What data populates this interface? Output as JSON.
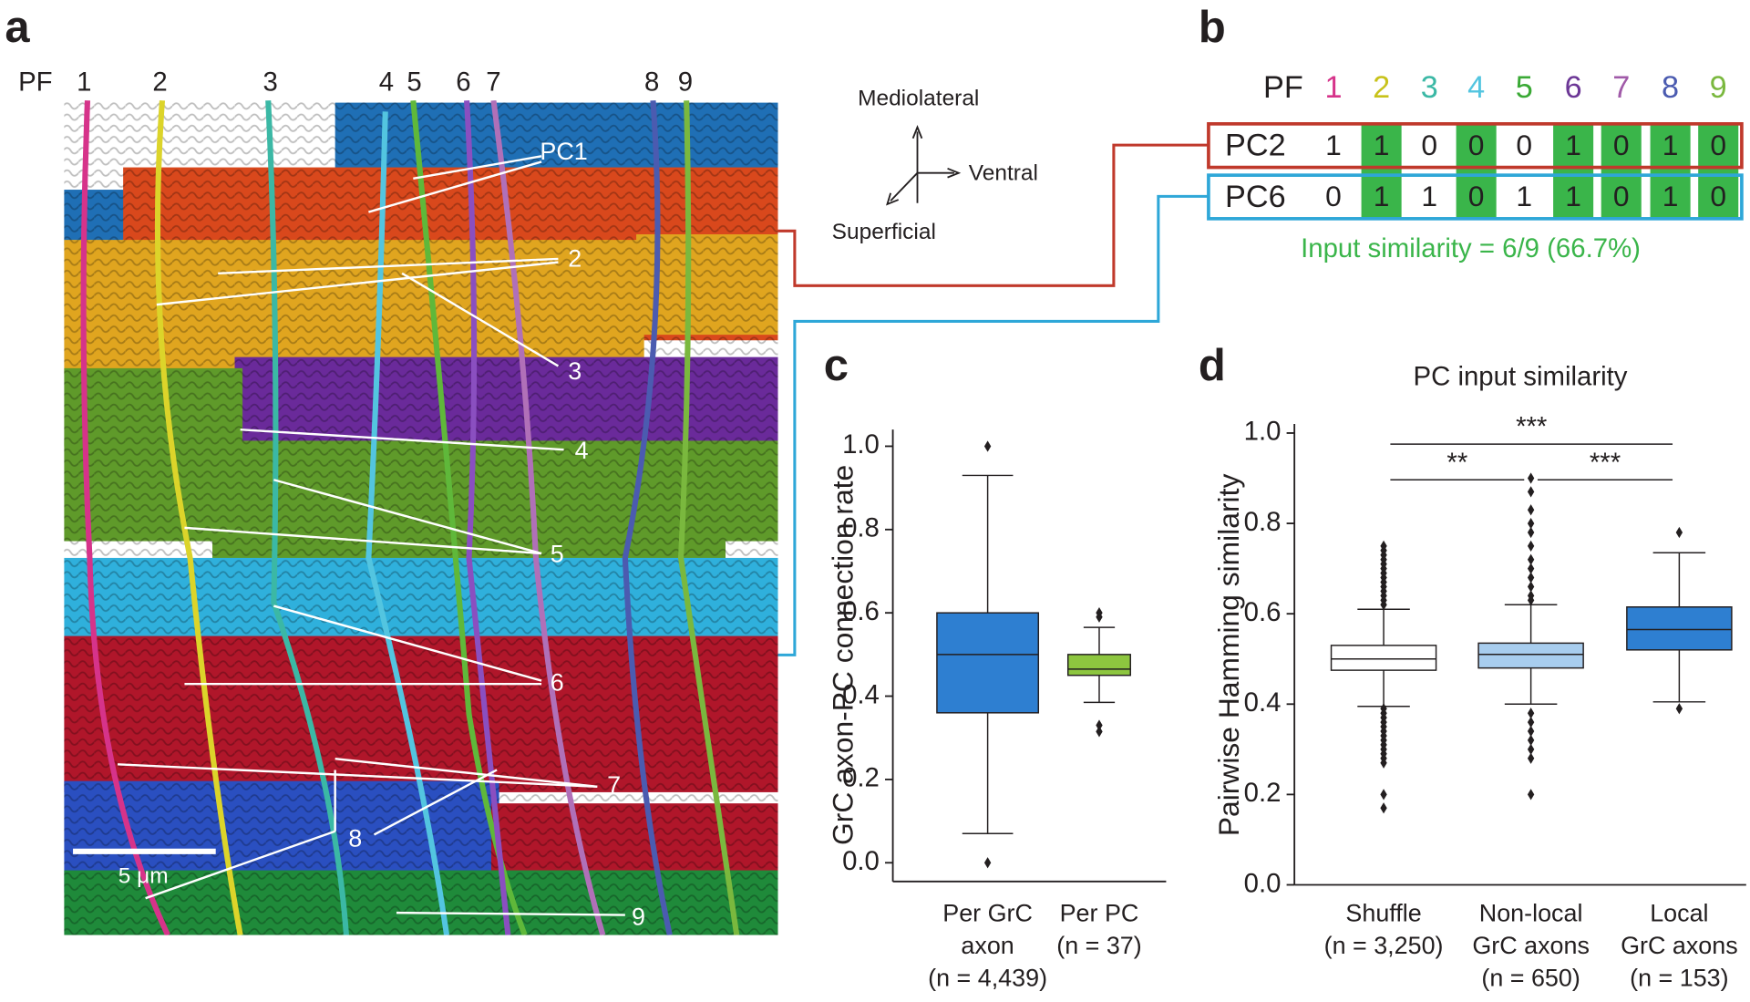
{
  "panel_labels": [
    "a",
    "b",
    "c",
    "d"
  ],
  "panel_a": {
    "pf_label": "PF",
    "pf_numbers": [
      "1",
      "2",
      "3",
      "4",
      "5",
      "6",
      "7",
      "8",
      "9"
    ],
    "pc1_label": "PC1",
    "region_labels": [
      "2",
      "3",
      "4",
      "5",
      "6",
      "7",
      "8",
      "9"
    ],
    "scale_bar": "5 μm",
    "axes": [
      "Mediolateral",
      "Ventral",
      "Superficial"
    ]
  },
  "panel_b": {
    "header": "PF",
    "columns": [
      "1",
      "2",
      "3",
      "4",
      "5",
      "6",
      "7",
      "8",
      "9"
    ],
    "column_colors": [
      "#d6338a",
      "#c8c21a",
      "#3bb8a5",
      "#53c5e0",
      "#3aa935",
      "#6c3796",
      "#a05aa8",
      "#4b5bb0",
      "#7ab83e"
    ],
    "rows": [
      {
        "name": "PC2",
        "border": "#c0392b",
        "values": [
          "1",
          "1",
          "0",
          "0",
          "0",
          "1",
          "0",
          "1",
          "0"
        ]
      },
      {
        "name": "PC6",
        "border": "#2ea7d8",
        "values": [
          "0",
          "1",
          "1",
          "0",
          "1",
          "1",
          "0",
          "1",
          "0"
        ]
      }
    ],
    "match_color": "#3ab54a",
    "caption": "Input similarity = 6/9 (66.7%)"
  },
  "chart_data": [
    {
      "type": "box",
      "ylabel": "GrC axon-PC connection rate",
      "categories": [
        [
          "Per GrC",
          "axon",
          "(n = 4,439)"
        ],
        [
          "Per PC",
          "(n = 37)"
        ]
      ],
      "colors": [
        "#2e7fd1",
        "#8dc63f"
      ],
      "stats": {
        "whislo": [
          0.07,
          0.385
        ],
        "q1": [
          0.36,
          0.45
        ],
        "median": [
          0.5,
          0.465
        ],
        "q3": [
          0.6,
          0.5
        ],
        "whishi": [
          0.93,
          0.565
        ]
      },
      "fliers": [
        [
          1.0,
          0.0
        ],
        [
          0.6,
          0.59,
          0.33,
          0.315
        ]
      ],
      "ylim": [
        -0.045,
        1.04
      ],
      "yticks": [
        {
          "value": 0,
          "label": "0.0"
        },
        0.2,
        0.4,
        0.6,
        0.8,
        {
          "value": 1,
          "label": "1.0"
        }
      ]
    },
    {
      "type": "box",
      "title": "PC input similarity",
      "ylabel": "Pairwise Hamming similarity",
      "categories": [
        [
          "Shuffle",
          "(n = 3,250)"
        ],
        [
          "Non-local",
          "GrC axons",
          "(n = 650)"
        ],
        [
          "Local",
          "GrC axons",
          "(n = 153)"
        ]
      ],
      "colors": [
        "#ffffff",
        "#a8cdee",
        "#2e7fd1"
      ],
      "stats": {
        "whislo": [
          0.395,
          0.4,
          0.405
        ],
        "q1": [
          0.475,
          0.48,
          0.52
        ],
        "median": [
          0.5,
          0.51,
          0.565
        ],
        "q3": [
          0.53,
          0.535,
          0.615
        ],
        "whishi": [
          0.61,
          0.62,
          0.735
        ]
      },
      "fliers": [
        [
          0.75,
          0.74,
          0.73,
          0.72,
          0.71,
          0.7,
          0.69,
          0.68,
          0.67,
          0.66,
          0.65,
          0.64,
          0.63,
          0.62,
          0.39,
          0.38,
          0.37,
          0.36,
          0.35,
          0.34,
          0.33,
          0.32,
          0.31,
          0.3,
          0.29,
          0.28,
          0.27,
          0.2,
          0.17
        ],
        [
          0.9,
          0.87,
          0.83,
          0.8,
          0.78,
          0.75,
          0.72,
          0.7,
          0.68,
          0.66,
          0.64,
          0.63,
          0.38,
          0.36,
          0.34,
          0.32,
          0.3,
          0.28,
          0.2
        ],
        [
          0.78,
          0.39
        ]
      ],
      "annotations": [
        "***",
        "**",
        "***"
      ],
      "ylim": [
        0,
        1.02
      ],
      "yticks": [
        {
          "value": 0,
          "label": "0.0"
        },
        0.2,
        0.4,
        0.6,
        0.8,
        {
          "value": 1,
          "label": "1.0"
        }
      ]
    }
  ]
}
